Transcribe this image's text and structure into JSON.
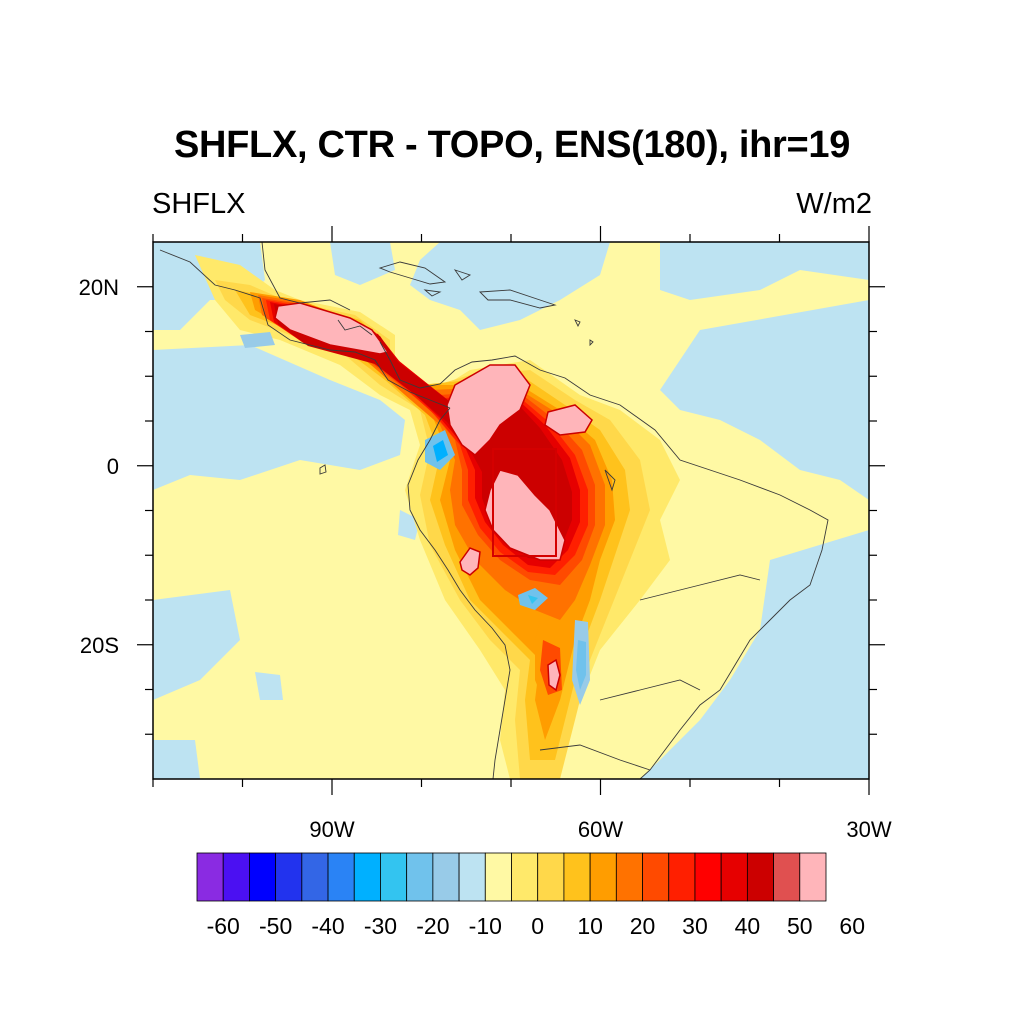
{
  "figure": {
    "title": "SHFLX, CTR - TOPO, ENS(180), ihr=19",
    "left_label": "SHFLX",
    "right_label": "W/m2"
  },
  "map": {
    "lon_range": [
      -110,
      -30
    ],
    "lat_range": [
      -35,
      25
    ],
    "x_ticks": [
      {
        "lon": -90,
        "label": "90W"
      },
      {
        "lon": -60,
        "label": "60W"
      },
      {
        "lon": -30,
        "label": "30W"
      }
    ],
    "y_ticks": [
      {
        "lat": 20,
        "label": "20N"
      },
      {
        "lat": 0,
        "label": "0"
      },
      {
        "lat": -20,
        "label": "20S"
      }
    ],
    "highlight_box": {
      "lon_min": -72,
      "lon_max": -65,
      "lat_min": -10,
      "lat_max": 2,
      "color": "#d40000"
    }
  },
  "colorbar": {
    "labels": [
      "-60",
      "-50",
      "-40",
      "-30",
      "-20",
      "-10",
      "0",
      "10",
      "20",
      "30",
      "40",
      "50",
      "60"
    ],
    "colors": [
      "#8a2be2",
      "#4b10f2",
      "#0000ff",
      "#2233ee",
      "#3366e6",
      "#2a83f5",
      "#00b0ff",
      "#33c4f0",
      "#70c2ec",
      "#98cbe8",
      "#bde3f2",
      "#fff9a4",
      "#ffe96a",
      "#ffd84a",
      "#ffc21c",
      "#ff9d00",
      "#ff7200",
      "#ff4a00",
      "#ff1f00",
      "#ff0000",
      "#e60000",
      "#cc0000",
      "#e05050",
      "#ffb5ba"
    ]
  }
}
